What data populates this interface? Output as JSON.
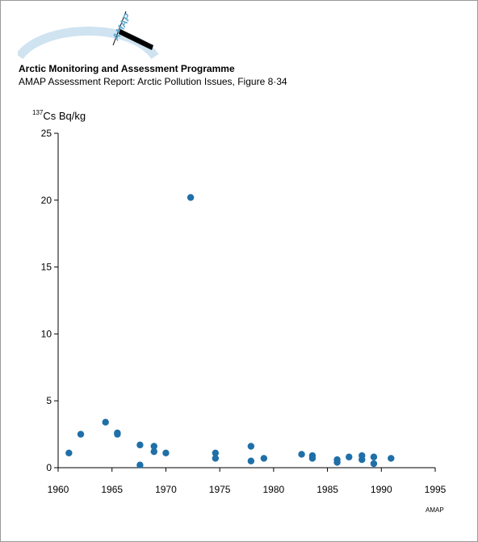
{
  "header": {
    "org_title": "Arctic Monitoring and Assessment Programme",
    "report_title": "AMAP Assessment Report: Arctic Pollution Issues, Figure 8·34",
    "logo_text": "AMAP",
    "logo_color": "#5aa6cf"
  },
  "footer": {
    "credit": "AMAP"
  },
  "chart_data": {
    "type": "scatter",
    "title": "",
    "ylabel_sup": "137",
    "ylabel": "Cs Bq/kg",
    "xlabel": "",
    "xlim": [
      1960,
      1995
    ],
    "ylim": [
      0,
      25
    ],
    "xticks": [
      1960,
      1965,
      1970,
      1975,
      1980,
      1985,
      1990,
      1995
    ],
    "yticks": [
      0,
      5,
      10,
      15,
      20,
      25
    ],
    "grid": false,
    "legend": false,
    "marker_color": "#1f6fa8",
    "points": [
      {
        "x": 1961.0,
        "y": 1.1
      },
      {
        "x": 1962.1,
        "y": 2.5
      },
      {
        "x": 1964.4,
        "y": 3.4
      },
      {
        "x": 1965.5,
        "y": 2.6
      },
      {
        "x": 1965.5,
        "y": 2.5
      },
      {
        "x": 1967.6,
        "y": 1.7
      },
      {
        "x": 1967.6,
        "y": 0.2
      },
      {
        "x": 1968.9,
        "y": 1.6
      },
      {
        "x": 1968.9,
        "y": 1.2
      },
      {
        "x": 1970.0,
        "y": 1.1
      },
      {
        "x": 1972.3,
        "y": 20.2
      },
      {
        "x": 1974.6,
        "y": 1.1
      },
      {
        "x": 1974.6,
        "y": 0.7
      },
      {
        "x": 1977.9,
        "y": 1.6
      },
      {
        "x": 1977.9,
        "y": 0.5
      },
      {
        "x": 1979.1,
        "y": 0.7
      },
      {
        "x": 1982.6,
        "y": 1.0
      },
      {
        "x": 1983.6,
        "y": 0.9
      },
      {
        "x": 1983.6,
        "y": 0.7
      },
      {
        "x": 1985.9,
        "y": 0.6
      },
      {
        "x": 1985.9,
        "y": 0.4
      },
      {
        "x": 1987.0,
        "y": 0.8
      },
      {
        "x": 1988.2,
        "y": 0.9
      },
      {
        "x": 1988.2,
        "y": 0.6
      },
      {
        "x": 1989.3,
        "y": 0.8
      },
      {
        "x": 1989.3,
        "y": 0.3
      },
      {
        "x": 1990.9,
        "y": 0.7
      }
    ]
  }
}
